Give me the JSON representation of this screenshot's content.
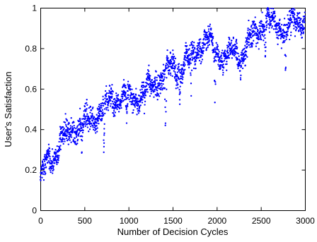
{
  "chart_data": {
    "type": "scatter",
    "title": "",
    "xlabel": "Number of Decision Cycles",
    "ylabel": "User's Satisfaction",
    "xlim": [
      0,
      3000
    ],
    "ylim": [
      0,
      1
    ],
    "xticks": [
      "0",
      "500",
      "1000",
      "1500",
      "2000",
      "2500",
      "3000"
    ],
    "yticks": [
      "0",
      "0.2",
      "0.4",
      "0.6",
      "0.8",
      "1"
    ],
    "grid": false,
    "legend": "none",
    "marker_color": "#0000ff",
    "trend": [
      [
        0,
        0.15
      ],
      [
        60,
        0.22
      ],
      [
        150,
        0.27
      ],
      [
        250,
        0.36
      ],
      [
        400,
        0.41
      ],
      [
        550,
        0.44
      ],
      [
        700,
        0.5
      ],
      [
        850,
        0.56
      ],
      [
        1000,
        0.56
      ],
      [
        1100,
        0.55
      ],
      [
        1200,
        0.59
      ],
      [
        1300,
        0.63
      ],
      [
        1400,
        0.67
      ],
      [
        1500,
        0.71
      ],
      [
        1600,
        0.7
      ],
      [
        1700,
        0.75
      ],
      [
        1800,
        0.82
      ],
      [
        1900,
        0.83
      ],
      [
        2000,
        0.79
      ],
      [
        2100,
        0.75
      ],
      [
        2200,
        0.79
      ],
      [
        2300,
        0.77
      ],
      [
        2400,
        0.85
      ],
      [
        2500,
        0.92
      ],
      [
        2600,
        0.92
      ],
      [
        2700,
        0.91
      ],
      [
        2800,
        0.9
      ],
      [
        2900,
        0.93
      ],
      [
        3000,
        0.95
      ]
    ],
    "dips": [
      [
        150,
        0.17
      ],
      [
        300,
        0.3
      ],
      [
        470,
        0.27
      ],
      [
        720,
        0.24
      ],
      [
        980,
        0.41
      ],
      [
        1180,
        0.45
      ],
      [
        1420,
        0.33
      ],
      [
        1580,
        0.49
      ],
      [
        1710,
        0.55
      ],
      [
        1980,
        0.47
      ],
      [
        2070,
        0.6
      ],
      [
        2270,
        0.62
      ],
      [
        2550,
        0.71
      ],
      [
        2780,
        0.61
      ]
    ],
    "point_count": 2200
  }
}
